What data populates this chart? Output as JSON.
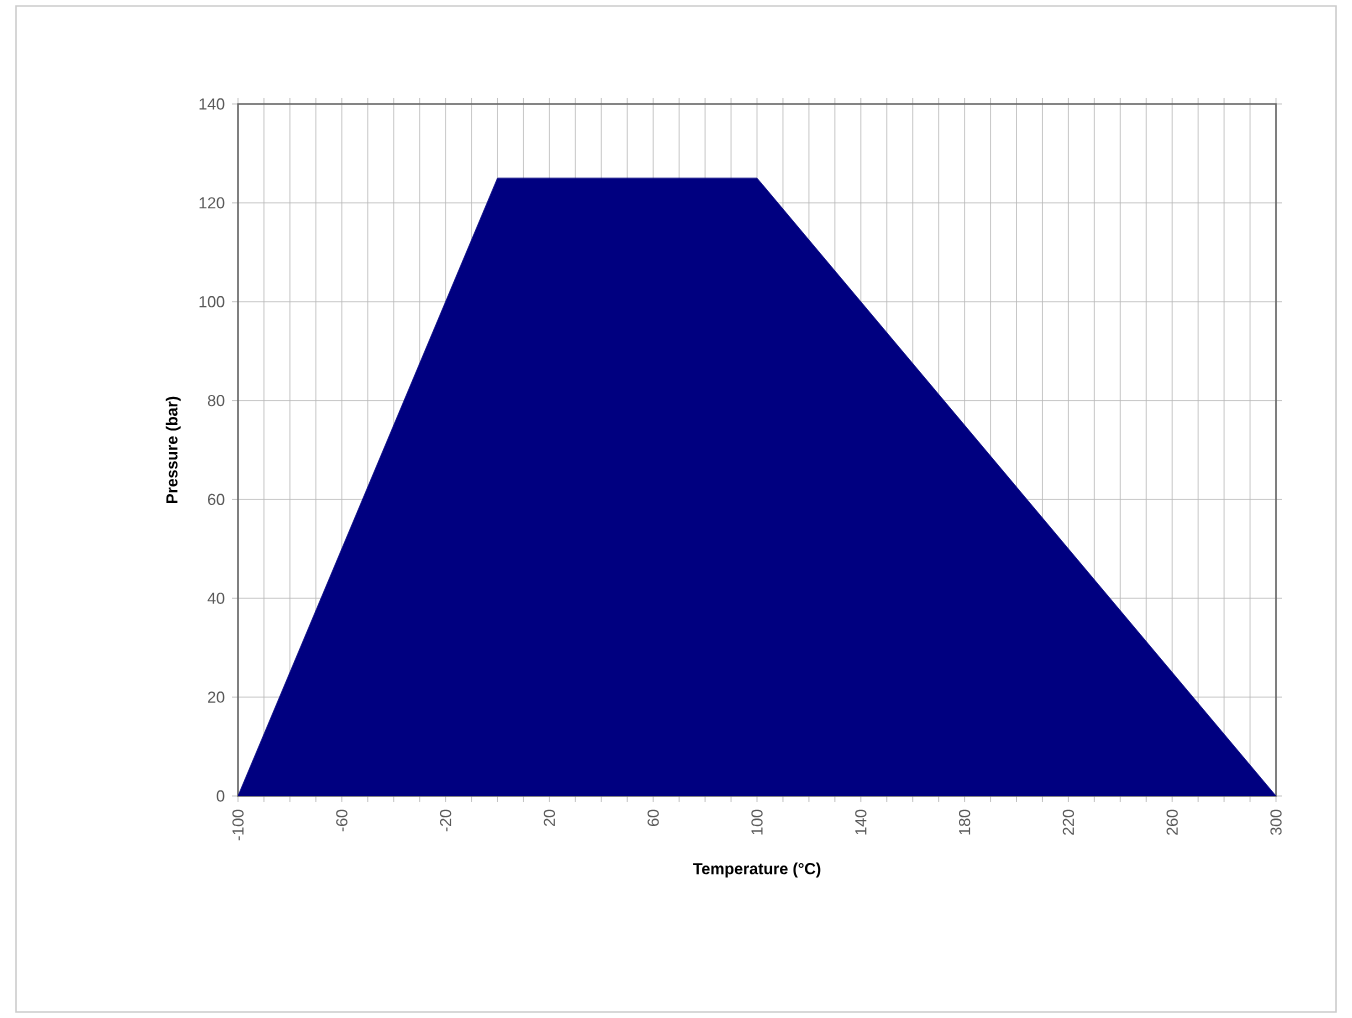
{
  "chart_data": {
    "type": "area",
    "xlabel": "Temperature (°C)",
    "ylabel": "Pressure (bar)",
    "x": [
      -100,
      0,
      100,
      300
    ],
    "values": [
      0,
      125,
      125,
      0
    ],
    "color": "#000080",
    "xlim": [
      -100,
      300
    ],
    "xticks": [
      -100,
      {
        "value": -90,
        "label": null
      },
      {
        "value": -80,
        "label": null
      },
      {
        "value": -70,
        "label": null
      },
      -60,
      {
        "value": -50,
        "label": null
      },
      {
        "value": -40,
        "label": null
      },
      {
        "value": -30,
        "label": null
      },
      -20,
      {
        "value": -10,
        "label": null
      },
      {
        "value": 0,
        "label": null
      },
      {
        "value": 10,
        "label": null
      },
      20,
      {
        "value": 30,
        "label": null
      },
      {
        "value": 40,
        "label": null
      },
      {
        "value": 50,
        "label": null
      },
      60,
      {
        "value": 70,
        "label": null
      },
      {
        "value": 80,
        "label": null
      },
      {
        "value": 90,
        "label": null
      },
      100,
      {
        "value": 110,
        "label": null
      },
      {
        "value": 120,
        "label": null
      },
      {
        "value": 130,
        "label": null
      },
      140,
      {
        "value": 150,
        "label": null
      },
      {
        "value": 160,
        "label": null
      },
      {
        "value": 170,
        "label": null
      },
      180,
      {
        "value": 190,
        "label": null
      },
      {
        "value": 200,
        "label": null
      },
      {
        "value": 210,
        "label": null
      },
      220,
      {
        "value": 230,
        "label": null
      },
      {
        "value": 240,
        "label": null
      },
      {
        "value": 250,
        "label": null
      },
      260,
      {
        "value": 270,
        "label": null
      },
      {
        "value": 280,
        "label": null
      },
      {
        "value": 290,
        "label": null
      },
      300
    ],
    "ylim": [
      0,
      140
    ],
    "yticks": [
      0,
      20,
      40,
      60,
      80,
      100,
      120,
      140
    ],
    "grid": true
  }
}
